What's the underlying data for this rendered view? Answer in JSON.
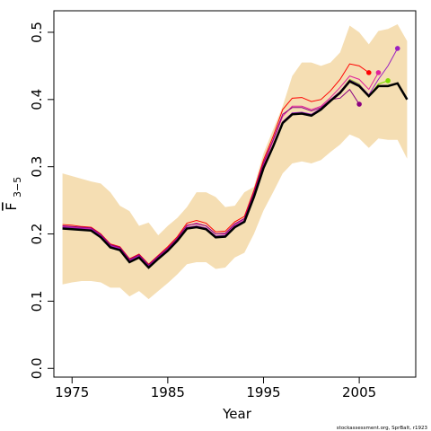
{
  "chart_data": {
    "type": "line",
    "xlabel": "Year",
    "ylabel": "F",
    "ylabel_subscript": "3−5",
    "footer": "stockassessment.org, SprBalt, r1923",
    "x": [
      1974,
      1975,
      1976,
      1977,
      1978,
      1979,
      1980,
      1981,
      1982,
      1983,
      1984,
      1985,
      1986,
      1987,
      1988,
      1989,
      1990,
      1991,
      1992,
      1993,
      1994,
      1995,
      1996,
      1997,
      1998,
      1999,
      2000,
      2001,
      2002,
      2003,
      2004,
      2005,
      2006,
      2007,
      2008,
      2009,
      2010
    ],
    "xlim": [
      1973.1,
      2010.9
    ],
    "xticks": [
      1975,
      1985,
      1995,
      2005
    ],
    "ylim": [
      -0.013,
      0.532
    ],
    "yticks": [
      {
        "value": 0,
        "label": "0.0"
      },
      0.1,
      0.2,
      0.3,
      0.4,
      0.5
    ],
    "band": {
      "color": "#f5deb3",
      "upper": [
        0.29,
        0.286,
        0.282,
        0.278,
        0.275,
        0.262,
        0.242,
        0.234,
        0.212,
        0.217,
        0.198,
        0.212,
        0.224,
        0.24,
        0.262,
        0.262,
        0.255,
        0.24,
        0.242,
        0.262,
        0.27,
        0.32,
        0.355,
        0.39,
        0.435,
        0.455,
        0.455,
        0.45,
        0.455,
        0.47,
        0.51,
        0.5,
        0.482,
        0.502,
        0.505,
        0.512,
        0.487
      ],
      "lower": [
        0.125,
        0.128,
        0.13,
        0.13,
        0.128,
        0.12,
        0.12,
        0.107,
        0.115,
        0.103,
        0.115,
        0.127,
        0.14,
        0.155,
        0.158,
        0.158,
        0.148,
        0.15,
        0.165,
        0.172,
        0.2,
        0.235,
        0.262,
        0.29,
        0.305,
        0.308,
        0.305,
        0.31,
        0.322,
        0.333,
        0.348,
        0.342,
        0.328,
        0.342,
        0.34,
        0.34,
        0.312
      ]
    },
    "series": [
      {
        "color": "#ff0000",
        "values": [
          0.214,
          0.213,
          0.211,
          0.21,
          0.2,
          0.185,
          0.181,
          0.163,
          0.17,
          0.155,
          0.168,
          0.181,
          0.196,
          0.216,
          0.22,
          0.216,
          0.203,
          0.204,
          0.218,
          0.226,
          0.265,
          0.31,
          0.345,
          0.385,
          0.402,
          0.403,
          0.397,
          0.4,
          0.413,
          0.43,
          0.453,
          0.45,
          0.44,
          null,
          null,
          null,
          null
        ]
      },
      {
        "color": "#e0209a",
        "values": [
          0.211,
          0.21,
          0.209,
          0.208,
          0.198,
          0.183,
          0.179,
          0.161,
          0.168,
          0.153,
          0.166,
          0.178,
          0.193,
          0.212,
          0.216,
          0.212,
          0.2,
          0.2,
          0.214,
          0.222,
          0.26,
          0.303,
          0.338,
          0.375,
          0.39,
          0.39,
          0.385,
          0.39,
          0.403,
          0.418,
          0.435,
          0.43,
          0.415,
          0.44,
          null,
          null,
          null
        ]
      },
      {
        "color": "#7fdc00",
        "values": [
          0.209,
          0.208,
          0.207,
          0.206,
          0.196,
          0.181,
          0.177,
          0.159,
          0.166,
          0.151,
          0.164,
          0.176,
          0.191,
          0.209,
          0.211,
          0.208,
          0.196,
          0.197,
          0.211,
          0.219,
          0.256,
          0.299,
          0.331,
          0.366,
          0.379,
          0.38,
          0.377,
          0.386,
          0.399,
          0.411,
          0.43,
          0.423,
          0.405,
          0.423,
          0.428,
          null,
          null
        ]
      },
      {
        "color": "#9a1fc0",
        "values": [
          0.21,
          0.209,
          0.208,
          0.207,
          0.197,
          0.182,
          0.178,
          0.16,
          0.167,
          0.152,
          0.165,
          0.177,
          0.192,
          0.21,
          0.212,
          0.209,
          0.197,
          0.198,
          0.212,
          0.22,
          0.257,
          0.3,
          0.332,
          0.367,
          0.38,
          0.381,
          0.378,
          0.387,
          0.4,
          0.412,
          0.429,
          0.422,
          0.407,
          0.43,
          0.45,
          0.476,
          null
        ]
      },
      {
        "color": "#8b0080",
        "values": [
          0.212,
          0.211,
          0.21,
          0.209,
          0.199,
          0.184,
          0.18,
          0.162,
          0.169,
          0.154,
          0.167,
          0.179,
          0.194,
          0.213,
          0.215,
          0.212,
          0.2,
          0.201,
          0.215,
          0.223,
          0.262,
          0.306,
          0.34,
          0.378,
          0.388,
          0.388,
          0.383,
          0.388,
          0.4,
          0.402,
          0.415,
          0.393,
          null,
          null,
          null,
          null,
          null
        ]
      },
      {
        "color": "#000000",
        "main": true,
        "values": [
          0.208,
          0.207,
          0.206,
          0.205,
          0.195,
          0.18,
          0.176,
          0.158,
          0.165,
          0.15,
          0.163,
          0.175,
          0.19,
          0.208,
          0.21,
          0.207,
          0.195,
          0.196,
          0.21,
          0.218,
          0.255,
          0.298,
          0.33,
          0.365,
          0.378,
          0.379,
          0.376,
          0.385,
          0.398,
          0.41,
          0.427,
          0.42,
          0.405,
          0.42,
          0.42,
          0.424,
          0.4
        ]
      }
    ]
  }
}
